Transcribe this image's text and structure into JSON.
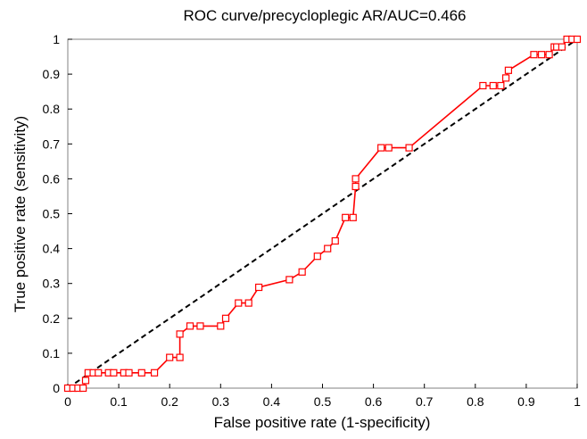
{
  "chart_data": {
    "type": "line",
    "title": "ROC curve/precycloplegic AR/AUC=0.466",
    "xlabel": "False positive rate (1-specificity)",
    "ylabel": "True positive rate (sensitivity)",
    "xlim": [
      0,
      1
    ],
    "ylim": [
      0,
      1
    ],
    "xticks": [
      "0",
      "0.1",
      "0.2",
      "0.3",
      "0.4",
      "0.5",
      "0.6",
      "0.7",
      "0.8",
      "0.9",
      "1"
    ],
    "yticks": [
      "0",
      "0.1",
      "0.2",
      "0.3",
      "0.4",
      "0.5",
      "0.6",
      "0.7",
      "0.8",
      "0.9",
      "1"
    ],
    "grid": false,
    "colors": {
      "roc": "#ff0000",
      "diagonal": "#000000"
    },
    "series": [
      {
        "style": "solid-with-square-markers",
        "x": [
          0,
          0.01,
          0.02,
          0.03,
          0.035,
          0.04,
          0.05,
          0.06,
          0.08,
          0.09,
          0.11,
          0.12,
          0.145,
          0.17,
          0.2,
          0.22,
          0.22,
          0.24,
          0.26,
          0.3,
          0.31,
          0.335,
          0.355,
          0.375,
          0.435,
          0.46,
          0.49,
          0.51,
          0.525,
          0.545,
          0.56,
          0.565,
          0.565,
          0.615,
          0.63,
          0.67,
          0.815,
          0.835,
          0.85,
          0.86,
          0.865,
          0.915,
          0.93,
          0.945,
          0.955,
          0.96,
          0.97,
          0.98,
          0.99,
          1.0
        ],
        "y": [
          0,
          0,
          0,
          0,
          0.022,
          0.044,
          0.044,
          0.044,
          0.044,
          0.044,
          0.044,
          0.044,
          0.044,
          0.044,
          0.088,
          0.088,
          0.155,
          0.178,
          0.178,
          0.178,
          0.2,
          0.244,
          0.244,
          0.289,
          0.311,
          0.333,
          0.378,
          0.4,
          0.422,
          0.489,
          0.489,
          0.578,
          0.6,
          0.689,
          0.689,
          0.689,
          0.867,
          0.867,
          0.867,
          0.889,
          0.911,
          0.956,
          0.956,
          0.956,
          0.978,
          0.978,
          0.978,
          1.0,
          1.0,
          1.0
        ]
      },
      {
        "style": "dashed-diagonal",
        "x": [
          0,
          1
        ],
        "y": [
          0,
          1
        ]
      }
    ]
  }
}
